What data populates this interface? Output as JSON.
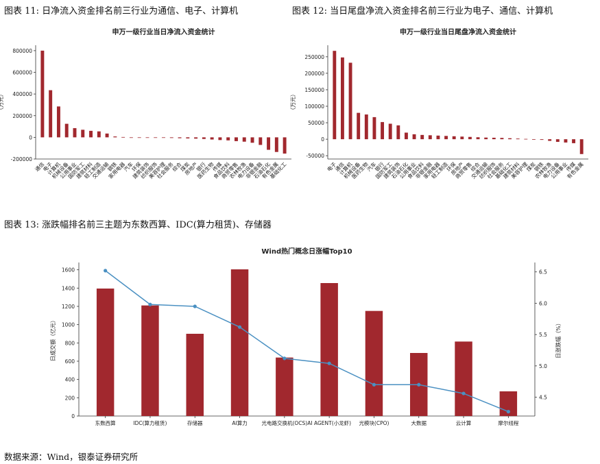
{
  "captions": {
    "fig11": "图表 11: 日净流入资金排名前三行业为通信、电子、计算机",
    "fig12": "图表 12: 当日尾盘净流入资金排名前三行业为电子、通信、计算机",
    "fig13": "图表 13: 涨跌幅排名前三主题为东数西算、IDC(算力租赁)、存储器"
  },
  "source": "数据来源：Wind，银泰证券研究所",
  "colors": {
    "bar": "#a1282e",
    "line": "#4a90c2",
    "axis": "#333333"
  },
  "chart_data": [
    {
      "type": "bar",
      "title": "申万一级行业当日净流入资金统计",
      "ylabel": "（万元）",
      "ylim": [
        -200000,
        850000
      ],
      "yticks": [
        -200000,
        0,
        200000,
        400000,
        600000,
        800000
      ],
      "categories": [
        "通信",
        "电子",
        "计算机",
        "机械设备",
        "公用事业",
        "国防军工",
        "建筑材料",
        "轻工制造",
        "交通运输",
        "钢铁",
        "家用电器",
        "汽车",
        "环保",
        "建筑装饰",
        "纺织服饰",
        "美容护理",
        "社会服务",
        "综合",
        "煤炭",
        "房地产",
        "银行",
        "医药生物",
        "传媒",
        "食品饮料",
        "商贸零售",
        "农林牧渔",
        "电力设备",
        "非银金融",
        "石油石化",
        "有色金属",
        "基础化工"
      ],
      "values": [
        800000,
        435000,
        285000,
        125000,
        85000,
        70000,
        60000,
        55000,
        35000,
        8000,
        3000,
        -1000,
        -2000,
        -3000,
        -4000,
        -5000,
        -6000,
        -8000,
        -10000,
        -12000,
        -15000,
        -20000,
        -25000,
        -28000,
        -35000,
        -40000,
        -50000,
        -70000,
        -115000,
        -135000,
        -150000
      ]
    },
    {
      "type": "bar",
      "title": "申万一级行业当日尾盘净流入资金统计",
      "ylabel": "（万元）",
      "ylim": [
        -60000,
        285000
      ],
      "yticks": [
        -50000,
        0,
        50000,
        100000,
        150000,
        200000,
        250000
      ],
      "categories": [
        "电子",
        "通信",
        "计算机",
        "机械设备",
        "医药生物",
        "汽车",
        "银行",
        "国防军工",
        "建筑装饰",
        "石油石化",
        "公用事业",
        "食品饮料",
        "非银金融",
        "家用电器",
        "轻工制造",
        "环保",
        "房地产",
        "商贸零售",
        "综合",
        "交通运输",
        "纺织服饰",
        "社会服务",
        "基础化工",
        "建筑材料",
        "美容护理",
        "煤炭",
        "钢铁",
        "农林牧渔",
        "电力设备",
        "公用事业",
        "传媒",
        "有色金属"
      ],
      "values": [
        268000,
        248000,
        232000,
        80000,
        75000,
        67000,
        52000,
        47000,
        42000,
        20000,
        15000,
        13000,
        12000,
        11000,
        10000,
        9000,
        8000,
        7000,
        6000,
        5000,
        4500,
        4000,
        3000,
        2000,
        1000,
        -1000,
        -2000,
        -5000,
        -8000,
        -10000,
        -12000,
        -45000
      ]
    },
    {
      "type": "bar+line",
      "title": "Wind热门概念日涨幅Top10",
      "ylabel": "日成交额（亿元）",
      "ylabel_right": "日涨跌幅（%）",
      "ylim": [
        0,
        1680
      ],
      "yticks": [
        0,
        200,
        400,
        600,
        800,
        1000,
        1200,
        1400,
        1600
      ],
      "ylim_right": [
        4.2,
        6.65
      ],
      "yticks_right": [
        4.5,
        5.0,
        5.5,
        6.0,
        6.5
      ],
      "right_tick_labels": [
        "4.5",
        "5.0",
        "5.5",
        "6.0",
        "6.5"
      ],
      "categories": [
        "东数西算",
        "IDC(算力租赁)",
        "存储器",
        "AI算力",
        "光电路交换机(OCS)",
        "AI AGENT(小龙虾)",
        "光模块(CPO)",
        "大数据",
        "云计算",
        "摩尔线程"
      ],
      "series": [
        {
          "name": "日成交额（亿元）",
          "type": "bar",
          "values": [
            1395,
            1210,
            900,
            1605,
            640,
            1455,
            1150,
            690,
            815,
            270
          ]
        },
        {
          "name": "日涨跌幅（%）",
          "type": "line",
          "values": [
            6.52,
            5.98,
            5.95,
            5.62,
            5.12,
            5.04,
            4.7,
            4.7,
            4.56,
            4.27
          ]
        }
      ]
    }
  ]
}
